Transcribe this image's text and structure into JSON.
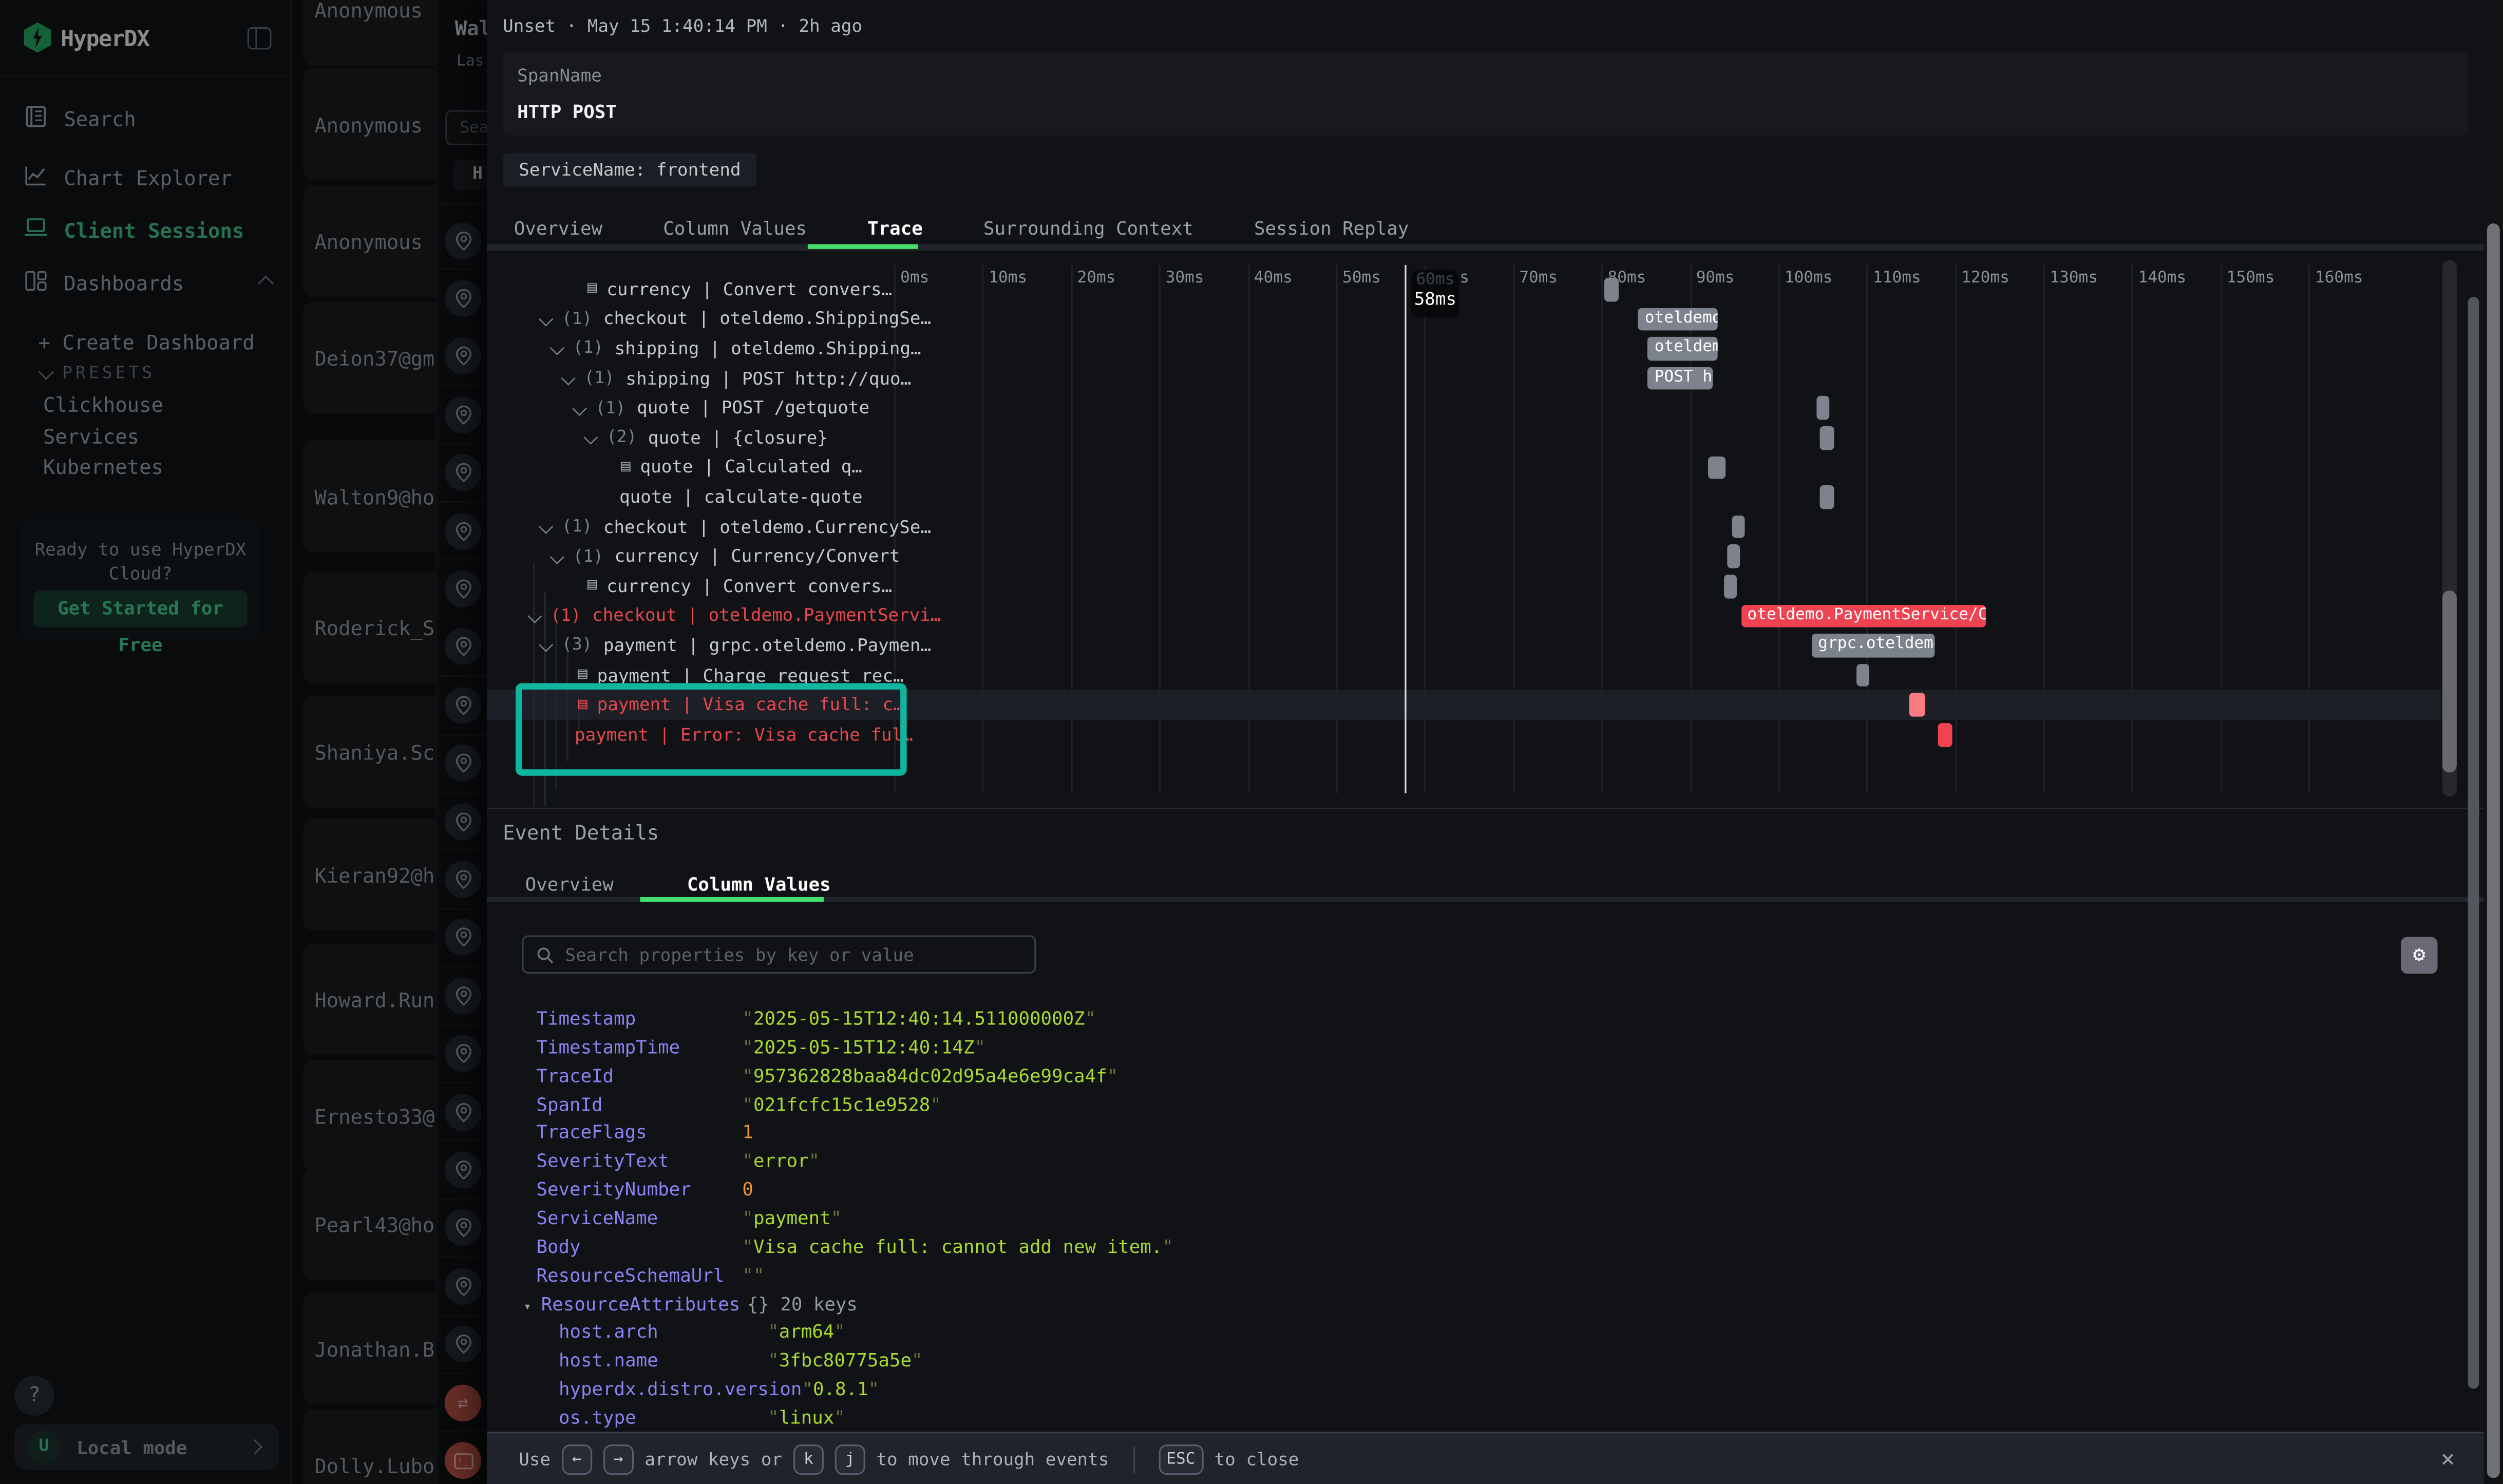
{
  "sidebar": {
    "logo_text": "HyperDX",
    "nav": [
      {
        "label": "Search",
        "icon": "journal",
        "active": false
      },
      {
        "label": "Chart Explorer",
        "icon": "chart",
        "active": false
      },
      {
        "label": "Client Sessions",
        "icon": "laptop",
        "active": true
      },
      {
        "label": "Dashboards",
        "icon": "grid",
        "active": false,
        "chevron": "up"
      }
    ],
    "create_dashboard": "+ Create Dashboard",
    "presets_label": "PRESETS",
    "presets": [
      "Clickhouse",
      "Services",
      "Kubernetes"
    ],
    "promo": {
      "line1": "Ready to use HyperDX",
      "line2": "Cloud?",
      "cta": "Get Started for Free"
    },
    "help_label": "?",
    "local_mode": {
      "avatar": "U",
      "label": "Local mode"
    }
  },
  "sessions": {
    "items": [
      "Anonymous",
      "Anonymous",
      "Anonymous",
      "Deion37@gm",
      "Walton9@ho",
      "Roderick_S",
      "Shaniya.Sc",
      "Kieran92@h",
      "Howard.Run",
      "Ernesto33@",
      "Pearl43@ho",
      "Jonathan.B",
      "Dolly.Lubo"
    ]
  },
  "session_panel": {
    "title": "Wal",
    "subtitle": "Las",
    "search_placeholder": "Sea",
    "filter_button": "H",
    "pin_count": 20,
    "red_icons": [
      "swap-arrows",
      "terminal"
    ]
  },
  "modal": {
    "header": "Unset · May 15 1:40:14 PM · 2h ago",
    "span_name": {
      "label": "SpanName",
      "value": "HTTP POST"
    },
    "service_chip": "ServiceName: frontend",
    "main_tabs": [
      {
        "label": "Overview",
        "active": false
      },
      {
        "label": "Column Values",
        "active": false
      },
      {
        "label": "Trace",
        "active": true
      },
      {
        "label": "Surrounding Context",
        "active": false
      },
      {
        "label": "Session Replay",
        "active": false
      }
    ],
    "trace": {
      "ticks": [
        "0ms",
        "10ms",
        "20ms",
        "30ms",
        "40ms",
        "50ms",
        "60ms",
        "70ms",
        "80ms",
        "90ms",
        "100ms",
        "110ms",
        "120ms",
        "130ms",
        "140ms",
        "150ms",
        "160ms"
      ],
      "cursor": {
        "ms": 57.8,
        "label": "58ms",
        "behind_label": "60ms"
      },
      "rows": [
        {
          "pad": 63,
          "icon": true,
          "text": "currency | Convert convers…",
          "red": false,
          "bar": {
            "start": 80.3,
            "end": 81.9,
            "color": "gray"
          }
        },
        {
          "pad": 33,
          "count": "(1)",
          "text": "checkout | oteldemo.ShippingSe…",
          "red": false,
          "bar": {
            "start": 84.2,
            "end": 93.2,
            "color": "gray",
            "label": "oteldemo."
          }
        },
        {
          "pad": 40,
          "count": "(1)",
          "text": "shipping | oteldemo.Shipping…",
          "red": false,
          "bar": {
            "start": 85.3,
            "end": 93.2,
            "color": "gray",
            "label": "oteldem"
          }
        },
        {
          "pad": 47,
          "count": "(1)",
          "text": "shipping | POST http://quo…",
          "red": false,
          "bar": {
            "start": 85.3,
            "end": 92.7,
            "color": "gray",
            "label": "POST h"
          }
        },
        {
          "pad": 54,
          "count": "(1)",
          "text": "quote | POST /getquote",
          "red": false,
          "bar": {
            "start": 104.3,
            "end": 105.8,
            "color": "gray"
          }
        },
        {
          "pad": 61,
          "count": "(2)",
          "text": "quote | {closure}",
          "red": false,
          "bar": {
            "start": 104.8,
            "end": 106.3,
            "color": "gray"
          }
        },
        {
          "pad": 84,
          "icon": true,
          "text": "quote | Calculated q…",
          "red": false,
          "bar": {
            "start": 92.0,
            "end": 94.0,
            "color": "gray"
          }
        },
        {
          "pad": 83,
          "text": "quote | calculate-quote",
          "red": false,
          "bar": {
            "start": 104.8,
            "end": 106.3,
            "color": "gray"
          }
        },
        {
          "pad": 33,
          "count": "(1)",
          "text": "checkout | oteldemo.CurrencySe…",
          "red": false,
          "bar": {
            "start": 94.8,
            "end": 96.3,
            "color": "gray"
          }
        },
        {
          "pad": 40,
          "count": "(1)",
          "text": "currency | Currency/Convert",
          "red": false,
          "bar": {
            "start": 94.2,
            "end": 95.7,
            "color": "gray"
          }
        },
        {
          "pad": 63,
          "icon": true,
          "text": "currency | Convert convers…",
          "red": false,
          "bar": {
            "start": 93.8,
            "end": 95.3,
            "color": "gray"
          }
        },
        {
          "pad": 26,
          "count": "(1)",
          "text": "checkout | oteldemo.PaymentServi…",
          "red": true,
          "bar": {
            "start": 95.8,
            "end": 123.5,
            "color": "red",
            "label": "oteldemo.PaymentService/Char"
          }
        },
        {
          "pad": 33,
          "count": "(3)",
          "text": "payment | grpc.oteldemo.Paymen…",
          "red": false,
          "bar": {
            "start": 103.8,
            "end": 117.8,
            "color": "gray",
            "label": "grpc.oteldemo."
          }
        },
        {
          "pad": 57,
          "icon": true,
          "text": "payment | Charge request rec…",
          "red": false,
          "bar": {
            "start": 108.8,
            "end": 110.3,
            "color": "gray"
          }
        },
        {
          "pad": 57,
          "icon": true,
          "text": "payment | Visa cache full: c…",
          "red": true,
          "highlight": true,
          "bar": {
            "start": 114.9,
            "end": 116.7,
            "color": "lightred"
          }
        },
        {
          "pad": 55,
          "text": "payment | Error: Visa cache ful…",
          "red": true,
          "bar": {
            "start": 118.0,
            "end": 119.7,
            "color": "red"
          }
        }
      ]
    },
    "event_details": {
      "title": "Event Details",
      "tabs": [
        {
          "label": "Overview",
          "active": false
        },
        {
          "label": "Column Values",
          "active": true
        }
      ],
      "search_placeholder": "Search properties by key or value",
      "properties": [
        {
          "key": "Timestamp",
          "value": "2025-05-15T12:40:14.511000000Z",
          "type": "string",
          "depth": 0
        },
        {
          "key": "TimestampTime",
          "value": "2025-05-15T12:40:14Z",
          "type": "string",
          "depth": 0
        },
        {
          "key": "TraceId",
          "value": "957362828baa84dc02d95a4e6e99ca4f",
          "type": "string",
          "depth": 0
        },
        {
          "key": "SpanId",
          "value": "021fcfc15c1e9528",
          "type": "string",
          "depth": 0
        },
        {
          "key": "TraceFlags",
          "value": "1",
          "type": "number",
          "depth": 0
        },
        {
          "key": "SeverityText",
          "value": "error",
          "type": "string",
          "depth": 0
        },
        {
          "key": "SeverityNumber",
          "value": "0",
          "type": "number",
          "depth": 0
        },
        {
          "key": "ServiceName",
          "value": "payment",
          "type": "string",
          "depth": 0
        },
        {
          "key": "Body",
          "value": "Visa cache full: cannot add new item.",
          "type": "string",
          "depth": 0
        },
        {
          "key": "ResourceSchemaUrl",
          "value": "",
          "type": "string",
          "depth": 0
        },
        {
          "key": "ResourceAttributes",
          "value": "{} 20 keys",
          "type": "meta",
          "depth": 0,
          "expander": true
        },
        {
          "key": "host.arch",
          "value": "arm64",
          "type": "string",
          "depth": 1
        },
        {
          "key": "host.name",
          "value": "3fbc80775a5e",
          "type": "string",
          "depth": 1
        },
        {
          "key": "hyperdx.distro.version",
          "value": "0.8.1",
          "type": "string",
          "depth": 1
        },
        {
          "key": "os.type",
          "value": "linux",
          "type": "string",
          "depth": 1
        }
      ]
    },
    "footer": {
      "use": "Use",
      "arrow_keys": [
        "←",
        "→"
      ],
      "arrow_text": "arrow keys or",
      "nav_keys": [
        "k",
        "j"
      ],
      "move_text": "to move through events",
      "esc_key": "ESC",
      "close_text": "to close",
      "close_icon": "×"
    }
  }
}
